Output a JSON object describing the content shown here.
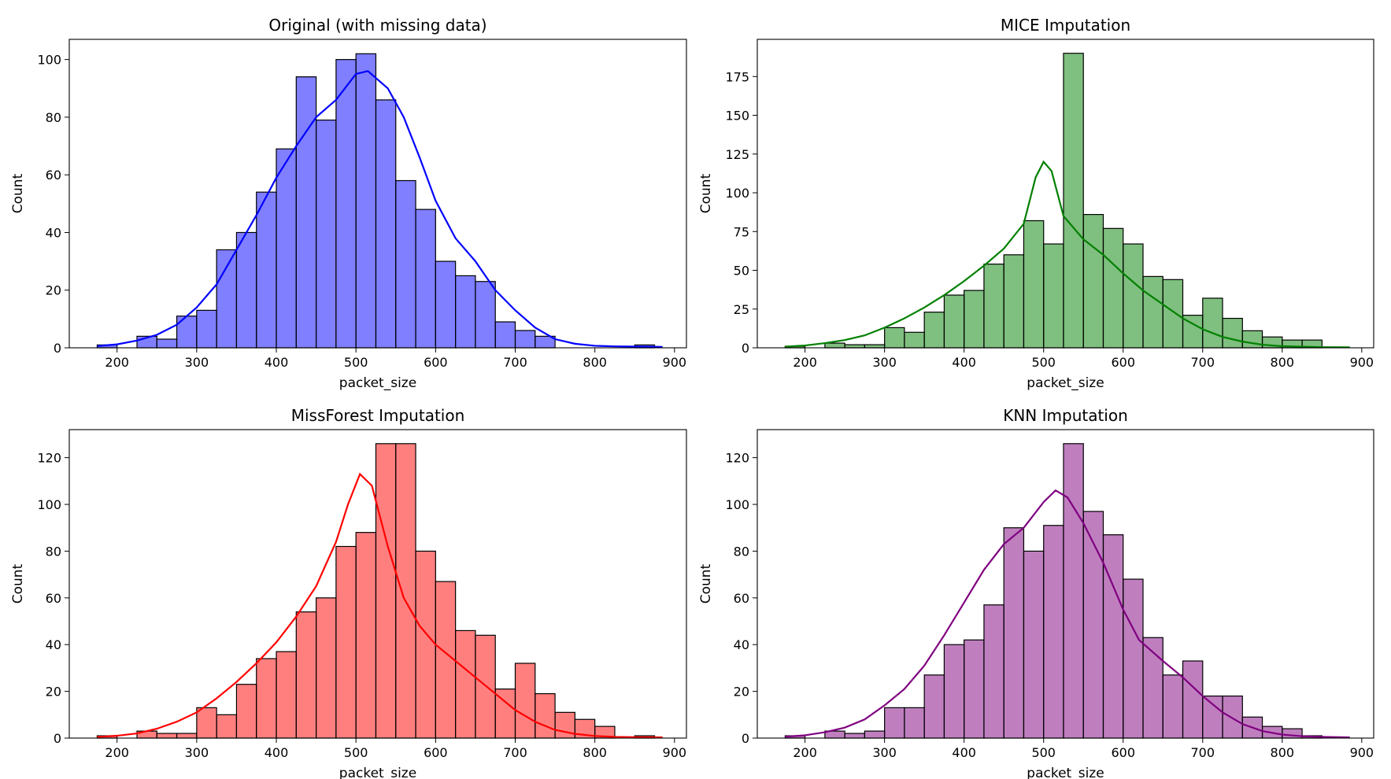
{
  "chart_data": [
    {
      "type": "bar",
      "title": "Original (with missing data)",
      "xlabel": "packet_size",
      "ylabel": "Count",
      "xlim": [
        140,
        915
      ],
      "ylim": [
        0,
        107
      ],
      "xticks": [
        200,
        300,
        400,
        500,
        600,
        700,
        800,
        900
      ],
      "yticks": [
        0,
        20,
        40,
        60,
        80,
        100
      ],
      "color": "#0000ff",
      "bin_edges": [
        175,
        200,
        225,
        250,
        275,
        300,
        325,
        350,
        375,
        400,
        425,
        450,
        475,
        500,
        525,
        550,
        575,
        600,
        625,
        650,
        675,
        700,
        725,
        750,
        775,
        800,
        825,
        850,
        875
      ],
      "values": [
        1,
        0,
        4,
        3,
        11,
        13,
        34,
        40,
        54,
        69,
        94,
        79,
        100,
        102,
        86,
        58,
        48,
        30,
        25,
        23,
        9,
        6,
        4,
        0,
        0,
        0,
        0,
        1
      ],
      "kde": [
        [
          175,
          0.6
        ],
        [
          200,
          1.2
        ],
        [
          225,
          2.5
        ],
        [
          250,
          4.5
        ],
        [
          275,
          8
        ],
        [
          300,
          14
        ],
        [
          325,
          22
        ],
        [
          350,
          34
        ],
        [
          375,
          46
        ],
        [
          400,
          59
        ],
        [
          425,
          70
        ],
        [
          450,
          80
        ],
        [
          475,
          86
        ],
        [
          500,
          95
        ],
        [
          515,
          96
        ],
        [
          540,
          90
        ],
        [
          560,
          80
        ],
        [
          580,
          66
        ],
        [
          600,
          51
        ],
        [
          625,
          38
        ],
        [
          650,
          30
        ],
        [
          675,
          20
        ],
        [
          700,
          13
        ],
        [
          725,
          7
        ],
        [
          750,
          3
        ],
        [
          775,
          1.4
        ],
        [
          800,
          0.7
        ],
        [
          825,
          0.5
        ],
        [
          850,
          0.4
        ],
        [
          885,
          0.3
        ]
      ]
    },
    {
      "type": "bar",
      "title": "MICE Imputation",
      "xlabel": "packet_size",
      "ylabel": "Count",
      "xlim": [
        140,
        915
      ],
      "ylim": [
        0,
        199
      ],
      "xticks": [
        200,
        300,
        400,
        500,
        600,
        700,
        800,
        900
      ],
      "yticks": [
        0,
        25,
        50,
        75,
        100,
        125,
        150,
        175
      ],
      "color": "#008000",
      "bin_edges": [
        175,
        200,
        225,
        250,
        275,
        300,
        325,
        350,
        375,
        400,
        425,
        450,
        475,
        500,
        525,
        550,
        575,
        600,
        625,
        650,
        675,
        700,
        725,
        750,
        775,
        800,
        825,
        850,
        875
      ],
      "values": [
        1,
        0,
        3,
        2,
        2,
        13,
        10,
        23,
        34,
        37,
        54,
        60,
        82,
        67,
        190,
        86,
        77,
        67,
        46,
        44,
        21,
        32,
        19,
        11,
        7,
        5,
        5,
        0
      ],
      "kde": [
        [
          175,
          0.7
        ],
        [
          200,
          1.5
        ],
        [
          225,
          3
        ],
        [
          250,
          5
        ],
        [
          275,
          8
        ],
        [
          300,
          13
        ],
        [
          325,
          19
        ],
        [
          350,
          26
        ],
        [
          375,
          34
        ],
        [
          400,
          43
        ],
        [
          425,
          53
        ],
        [
          450,
          64
        ],
        [
          475,
          80
        ],
        [
          490,
          110
        ],
        [
          500,
          120
        ],
        [
          510,
          114
        ],
        [
          525,
          85
        ],
        [
          550,
          70
        ],
        [
          575,
          60
        ],
        [
          600,
          48
        ],
        [
          625,
          37
        ],
        [
          650,
          28
        ],
        [
          675,
          19
        ],
        [
          700,
          12
        ],
        [
          725,
          7
        ],
        [
          750,
          4
        ],
        [
          775,
          2
        ],
        [
          800,
          1
        ],
        [
          825,
          0.7
        ],
        [
          850,
          0.4
        ],
        [
          885,
          0.3
        ]
      ]
    },
    {
      "type": "bar",
      "title": "MissForest Imputation",
      "xlabel": "packet_size",
      "ylabel": "Count",
      "xlim": [
        140,
        915
      ],
      "ylim": [
        0,
        132
      ],
      "xticks": [
        200,
        300,
        400,
        500,
        600,
        700,
        800,
        900
      ],
      "yticks": [
        0,
        20,
        40,
        60,
        80,
        100,
        120
      ],
      "color": "#ff0000",
      "bin_edges": [
        175,
        200,
        225,
        250,
        275,
        300,
        325,
        350,
        375,
        400,
        425,
        450,
        475,
        500,
        525,
        550,
        575,
        600,
        625,
        650,
        675,
        700,
        725,
        750,
        775,
        800,
        825,
        850,
        875
      ],
      "values": [
        1,
        0,
        3,
        2,
        2,
        13,
        10,
        23,
        34,
        37,
        54,
        60,
        82,
        88,
        126,
        126,
        80,
        67,
        46,
        44,
        21,
        32,
        19,
        11,
        8,
        5,
        0,
        1
      ],
      "kde": [
        [
          175,
          0.5
        ],
        [
          200,
          1
        ],
        [
          225,
          2
        ],
        [
          250,
          4
        ],
        [
          275,
          7
        ],
        [
          300,
          11
        ],
        [
          325,
          17
        ],
        [
          350,
          24
        ],
        [
          375,
          32
        ],
        [
          400,
          41
        ],
        [
          425,
          52
        ],
        [
          450,
          65
        ],
        [
          475,
          84
        ],
        [
          490,
          100
        ],
        [
          505,
          113
        ],
        [
          520,
          108
        ],
        [
          540,
          82
        ],
        [
          560,
          60
        ],
        [
          580,
          48
        ],
        [
          600,
          40
        ],
        [
          625,
          33
        ],
        [
          650,
          26
        ],
        [
          675,
          19
        ],
        [
          700,
          12
        ],
        [
          725,
          7
        ],
        [
          750,
          3.5
        ],
        [
          775,
          1.8
        ],
        [
          800,
          0.9
        ],
        [
          825,
          0.5
        ],
        [
          850,
          0.4
        ],
        [
          885,
          0.3
        ]
      ]
    },
    {
      "type": "bar",
      "title": "KNN Imputation",
      "xlabel": "packet_size",
      "ylabel": "Count",
      "xlim": [
        140,
        915
      ],
      "ylim": [
        0,
        132
      ],
      "xticks": [
        200,
        300,
        400,
        500,
        600,
        700,
        800,
        900
      ],
      "yticks": [
        0,
        20,
        40,
        60,
        80,
        100,
        120
      ],
      "color": "#800080",
      "bin_edges": [
        175,
        200,
        225,
        250,
        275,
        300,
        325,
        350,
        375,
        400,
        425,
        450,
        475,
        500,
        525,
        550,
        575,
        600,
        625,
        650,
        675,
        700,
        725,
        750,
        775,
        800,
        825,
        850,
        875
      ],
      "values": [
        1,
        0,
        3,
        2,
        3,
        13,
        13,
        27,
        40,
        42,
        57,
        90,
        80,
        91,
        126,
        97,
        87,
        68,
        43,
        27,
        33,
        18,
        18,
        9,
        5,
        4,
        1,
        0
      ],
      "kde": [
        [
          175,
          0.6
        ],
        [
          200,
          1.2
        ],
        [
          225,
          2.5
        ],
        [
          250,
          4.5
        ],
        [
          275,
          8
        ],
        [
          300,
          14
        ],
        [
          325,
          21
        ],
        [
          350,
          31
        ],
        [
          375,
          44
        ],
        [
          400,
          58
        ],
        [
          425,
          72
        ],
        [
          450,
          83
        ],
        [
          475,
          90
        ],
        [
          500,
          101
        ],
        [
          515,
          106
        ],
        [
          530,
          103
        ],
        [
          550,
          92
        ],
        [
          575,
          75
        ],
        [
          600,
          55
        ],
        [
          620,
          42
        ],
        [
          650,
          33
        ],
        [
          675,
          26
        ],
        [
          700,
          18
        ],
        [
          725,
          11
        ],
        [
          750,
          6
        ],
        [
          775,
          3
        ],
        [
          800,
          1.5
        ],
        [
          825,
          0.8
        ],
        [
          850,
          0.5
        ],
        [
          885,
          0.3
        ]
      ]
    }
  ]
}
